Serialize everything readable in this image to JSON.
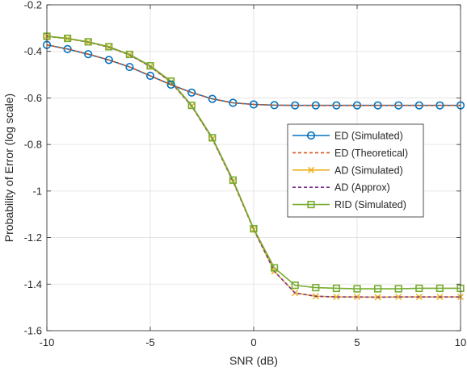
{
  "chart_data": {
    "type": "line",
    "title": "",
    "xlabel": "SNR (dB)",
    "ylabel": "Probability of Error (log scale)",
    "xlim": [
      -10,
      10
    ],
    "ylim": [
      -1.6,
      -0.2
    ],
    "xticks": [
      -10,
      -5,
      0,
      5,
      10
    ],
    "xtick_labels": [
      "-10",
      "-5",
      "0",
      "5",
      "10"
    ],
    "yticks": [
      -1.6,
      -1.4,
      -1.2,
      -1.0,
      -0.8,
      -0.6,
      -0.4,
      -0.2
    ],
    "ytick_labels": [
      "-1.6",
      "-1.4",
      "-1.2",
      "-1",
      "-0.8",
      "-0.6",
      "-0.4",
      "-0.2"
    ],
    "grid": true,
    "legend_position": "center-right",
    "x": [
      -10,
      -9,
      -8,
      -7,
      -6,
      -5,
      -4,
      -3,
      -2,
      -1,
      0,
      1,
      2,
      3,
      4,
      5,
      6,
      7,
      8,
      9,
      10
    ],
    "series": [
      {
        "name": "ED (Simulated)",
        "color": "#0072BD",
        "line_style": "solid",
        "marker": "circle",
        "values": [
          -0.372,
          -0.39,
          -0.412,
          -0.437,
          -0.467,
          -0.505,
          -0.543,
          -0.577,
          -0.604,
          -0.621,
          -0.628,
          -0.631,
          -0.632,
          -0.632,
          -0.632,
          -0.632,
          -0.632,
          -0.632,
          -0.632,
          -0.632,
          -0.632
        ]
      },
      {
        "name": "ED (Theoretical)",
        "color": "#D95319",
        "line_style": "dashed",
        "marker": "none",
        "values": [
          -0.372,
          -0.39,
          -0.412,
          -0.437,
          -0.467,
          -0.505,
          -0.543,
          -0.577,
          -0.604,
          -0.621,
          -0.628,
          -0.631,
          -0.632,
          -0.632,
          -0.632,
          -0.632,
          -0.632,
          -0.632,
          -0.632,
          -0.632,
          -0.632
        ]
      },
      {
        "name": "AD (Simulated)",
        "color": "#EDB120",
        "line_style": "solid",
        "marker": "x",
        "values": [
          -0.335,
          -0.345,
          -0.36,
          -0.382,
          -0.415,
          -0.465,
          -0.532,
          -0.635,
          -0.775,
          -0.958,
          -1.165,
          -1.345,
          -1.438,
          -1.452,
          -1.455,
          -1.455,
          -1.456,
          -1.455,
          -1.455,
          -1.455,
          -1.455
        ]
      },
      {
        "name": "AD (Approx)",
        "color": "#7E2F8E",
        "line_style": "dashed",
        "marker": "none",
        "values": [
          -0.335,
          -0.345,
          -0.36,
          -0.382,
          -0.415,
          -0.465,
          -0.532,
          -0.635,
          -0.775,
          -0.958,
          -1.165,
          -1.345,
          -1.438,
          -1.452,
          -1.455,
          -1.455,
          -1.456,
          -1.455,
          -1.455,
          -1.455,
          -1.455
        ]
      },
      {
        "name": "RID (Simulated)",
        "color": "#77AC30",
        "line_style": "solid",
        "marker": "square",
        "values": [
          -0.335,
          -0.344,
          -0.359,
          -0.38,
          -0.413,
          -0.462,
          -0.528,
          -0.632,
          -0.771,
          -0.953,
          -1.162,
          -1.33,
          -1.405,
          -1.415,
          -1.418,
          -1.42,
          -1.42,
          -1.42,
          -1.418,
          -1.418,
          -1.418
        ]
      }
    ]
  }
}
